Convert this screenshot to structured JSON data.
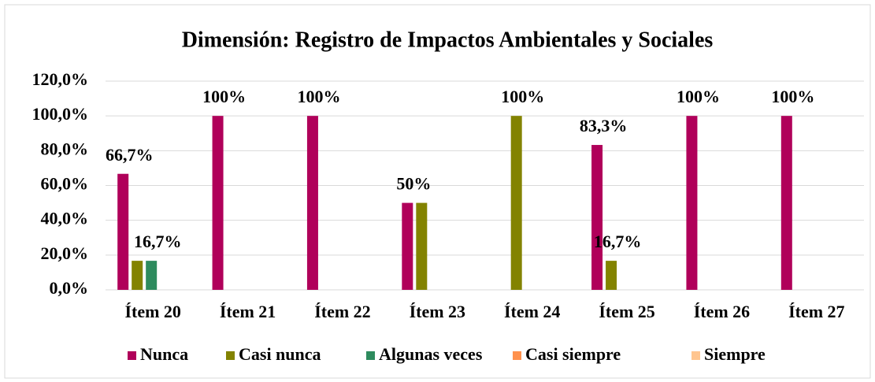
{
  "chart_data": {
    "type": "bar",
    "title": "Dimensión: Registro de Impactos Ambientales y Sociales",
    "categories": [
      "Ítem 20",
      "Ítem 21",
      "Ítem 22",
      "Ítem 23",
      "Ítem 24",
      "Ítem 25",
      "Ítem 26",
      "Ítem 27"
    ],
    "series": [
      {
        "name": "Nunca",
        "color": "#b0005a",
        "values": [
          66.7,
          100,
          100,
          50,
          0,
          83.3,
          100,
          100
        ],
        "value_labels": [
          "66,7%",
          "100%",
          "100%",
          "50%",
          null,
          "83,3%",
          "100%",
          "100%"
        ]
      },
      {
        "name": "Casi nunca",
        "color": "#838300",
        "values": [
          16.7,
          0,
          0,
          50,
          100,
          16.7,
          0,
          0
        ],
        "value_labels": [
          null,
          null,
          null,
          null,
          "100%",
          "16,7%",
          null,
          null
        ]
      },
      {
        "name": "Algunas veces",
        "color": "#2e8b5e",
        "values": [
          16.7,
          0,
          0,
          0,
          0,
          0,
          0,
          0
        ],
        "value_labels": [
          "16,7%",
          null,
          null,
          null,
          null,
          null,
          null,
          null
        ]
      },
      {
        "name": "Casi siempre",
        "color": "#ff914d",
        "values": [
          0,
          0,
          0,
          0,
          0,
          0,
          0,
          0
        ]
      },
      {
        "name": "Siempre",
        "color": "#ffc58f",
        "values": [
          0,
          0,
          0,
          0,
          0,
          0,
          0,
          0
        ]
      }
    ],
    "ylim": [
      0,
      120
    ],
    "yticks": [
      {
        "value": 0,
        "label": "0,0%"
      },
      {
        "value": 20,
        "label": "20,0%"
      },
      {
        "value": 40,
        "label": "40,0%"
      },
      {
        "value": 60,
        "label": "60,0%"
      },
      {
        "value": 80,
        "label": "80,0%"
      },
      {
        "value": 100,
        "label": "100,0%"
      },
      {
        "value": 120,
        "label": "120,0%"
      }
    ],
    "grid": true,
    "legend": "bottom"
  }
}
